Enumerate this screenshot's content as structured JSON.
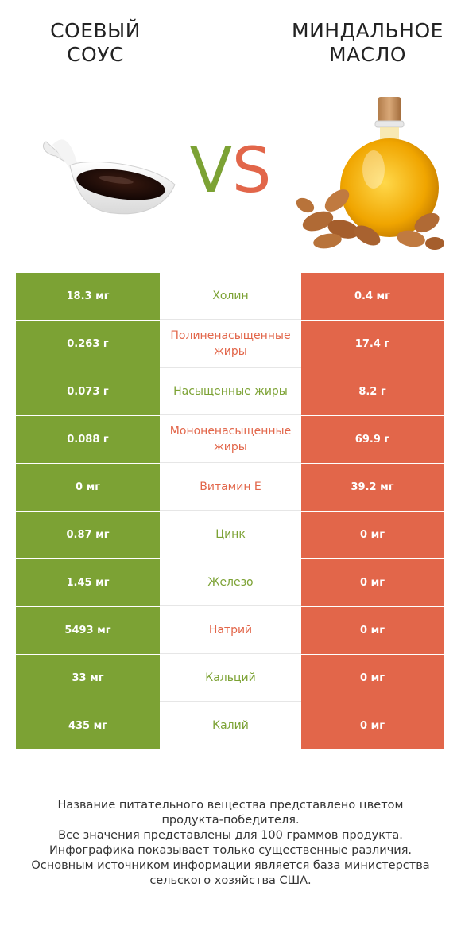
{
  "header": {
    "left_title_line1": "СОЕВЫЙ",
    "left_title_line2": "СОУС",
    "right_title_line1": "МИНДАЛЬНОЕ",
    "right_title_line2": "МАСЛО",
    "vs_v": "V",
    "vs_s": "S"
  },
  "colors": {
    "left_product": "#7ca234",
    "right_product": "#e2664a"
  },
  "chart_data": {
    "type": "table",
    "columns": [
      "Соевый соус",
      "Миндальное масло"
    ],
    "rows": [
      {
        "nutrient": "Холин",
        "left": "18.3 мг",
        "right": "0.4 мг",
        "winner": "left"
      },
      {
        "nutrient": "Полиненасыщенные жиры",
        "left": "0.263 г",
        "right": "17.4 г",
        "winner": "right"
      },
      {
        "nutrient": "Насыщенные жиры",
        "left": "0.073 г",
        "right": "8.2 г",
        "winner": "left"
      },
      {
        "nutrient": "Мононенасыщенные жиры",
        "left": "0.088 г",
        "right": "69.9 г",
        "winner": "right"
      },
      {
        "nutrient": "Витамин E",
        "left": "0 мг",
        "right": "39.2 мг",
        "winner": "right"
      },
      {
        "nutrient": "Цинк",
        "left": "0.87 мг",
        "right": "0 мг",
        "winner": "left"
      },
      {
        "nutrient": "Железо",
        "left": "1.45 мг",
        "right": "0 мг",
        "winner": "left"
      },
      {
        "nutrient": "Натрий",
        "left": "5493 мг",
        "right": "0 мг",
        "winner": "right"
      },
      {
        "nutrient": "Кальций",
        "left": "33 мг",
        "right": "0 мг",
        "winner": "left"
      },
      {
        "nutrient": "Калий",
        "left": "435 мг",
        "right": "0 мг",
        "winner": "left"
      }
    ]
  },
  "footer": {
    "line1": "Название питательного вещества представлено цветом",
    "line2": "продукта-победителя.",
    "line3": "Все значения представлены для 100 граммов продукта.",
    "line4": "Инфографика показывает только существенные различия.",
    "line5": "Основным источником информации является база министерства",
    "line6": "сельского хозяйства США."
  }
}
